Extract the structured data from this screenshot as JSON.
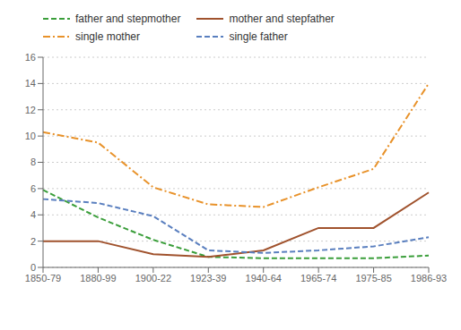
{
  "chart_data": {
    "type": "line",
    "categories": [
      "1850-79",
      "1880-99",
      "1900-22",
      "1923-39",
      "1940-64",
      "1965-74",
      "1975-85",
      "1986-93"
    ],
    "series": [
      {
        "name": "father and stepmother",
        "color": "#3A9E3A",
        "line_style": "dashed",
        "values": [
          5.9,
          3.8,
          2.1,
          0.8,
          0.7,
          0.7,
          0.7,
          0.9
        ]
      },
      {
        "name": "mother and stepfather",
        "color": "#A0522D",
        "line_style": "solid",
        "values": [
          2.0,
          2.0,
          1.0,
          0.8,
          1.3,
          3.0,
          3.0,
          5.7
        ]
      },
      {
        "name": "single mother",
        "color": "#E8922A",
        "line_style": "dashdot",
        "values": [
          10.3,
          9.5,
          6.1,
          4.8,
          4.6,
          6.1,
          7.5,
          14.0
        ]
      },
      {
        "name": "single father",
        "color": "#5A7FBF",
        "line_style": "dashed",
        "values": [
          5.2,
          4.9,
          3.9,
          1.3,
          1.1,
          1.3,
          1.6,
          2.3
        ]
      }
    ],
    "ylim": [
      0,
      16
    ],
    "yticks": [
      0,
      2,
      4,
      6,
      8,
      10,
      12,
      14,
      16
    ],
    "grid": true,
    "legend": "top"
  }
}
